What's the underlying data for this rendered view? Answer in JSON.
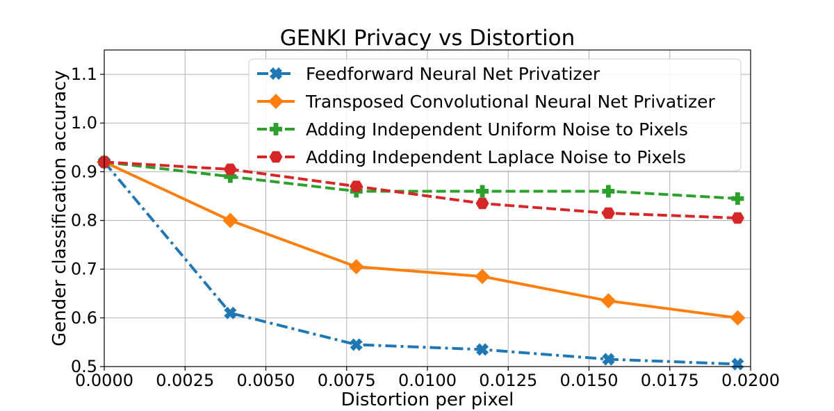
{
  "chart_data": {
    "type": "line",
    "title": "GENKI Privacy vs Distortion",
    "xlabel": "Distortion per pixel",
    "ylabel": "Gender classification accuracy",
    "xlim": [
      0.0,
      0.02
    ],
    "ylim": [
      0.5,
      1.15
    ],
    "grid": true,
    "legend_position": "top-right",
    "xticks": [
      0.0,
      0.0025,
      0.005,
      0.0075,
      0.01,
      0.0125,
      0.015,
      0.0175,
      0.02
    ],
    "xtick_labels": [
      "0.0000",
      "0.0025",
      "0.0050",
      "0.0075",
      "0.0100",
      "0.0125",
      "0.0150",
      "0.0175",
      "0.0200"
    ],
    "yticks": [
      0.5,
      0.6,
      0.7,
      0.8,
      0.9,
      1.0,
      1.1
    ],
    "ytick_labels": [
      "0.5",
      "0.6",
      "0.7",
      "0.8",
      "0.9",
      "1.0",
      "1.1"
    ],
    "series": [
      {
        "name": "Feedforward Neural Net Privatizer",
        "color": "#1f77b4",
        "linestyle": "dashdot",
        "marker": "X",
        "x": [
          0.0,
          0.0039,
          0.0078,
          0.0117,
          0.0156,
          0.0196
        ],
        "y": [
          0.92,
          0.61,
          0.545,
          0.535,
          0.515,
          0.505
        ]
      },
      {
        "name": "Transposed Convolutional Neural Net Privatizer",
        "color": "#ff7f0e",
        "linestyle": "solid",
        "marker": "diamond",
        "x": [
          0.0,
          0.0039,
          0.0078,
          0.0117,
          0.0156,
          0.0196
        ],
        "y": [
          0.92,
          0.8,
          0.705,
          0.685,
          0.635,
          0.6
        ]
      },
      {
        "name": "Adding Independent Uniform Noise to Pixels",
        "color": "#2ca02c",
        "linestyle": "dashed",
        "marker": "plus",
        "x": [
          0.0,
          0.0039,
          0.0078,
          0.0117,
          0.0156,
          0.0196
        ],
        "y": [
          0.92,
          0.89,
          0.86,
          0.86,
          0.86,
          0.845
        ]
      },
      {
        "name": "Adding Independent Laplace Noise to Pixels",
        "color": "#d62728",
        "linestyle": "dashed",
        "marker": "hexagon",
        "x": [
          0.0,
          0.0039,
          0.0078,
          0.0117,
          0.0156,
          0.0196
        ],
        "y": [
          0.92,
          0.905,
          0.87,
          0.835,
          0.815,
          0.805
        ]
      }
    ]
  }
}
